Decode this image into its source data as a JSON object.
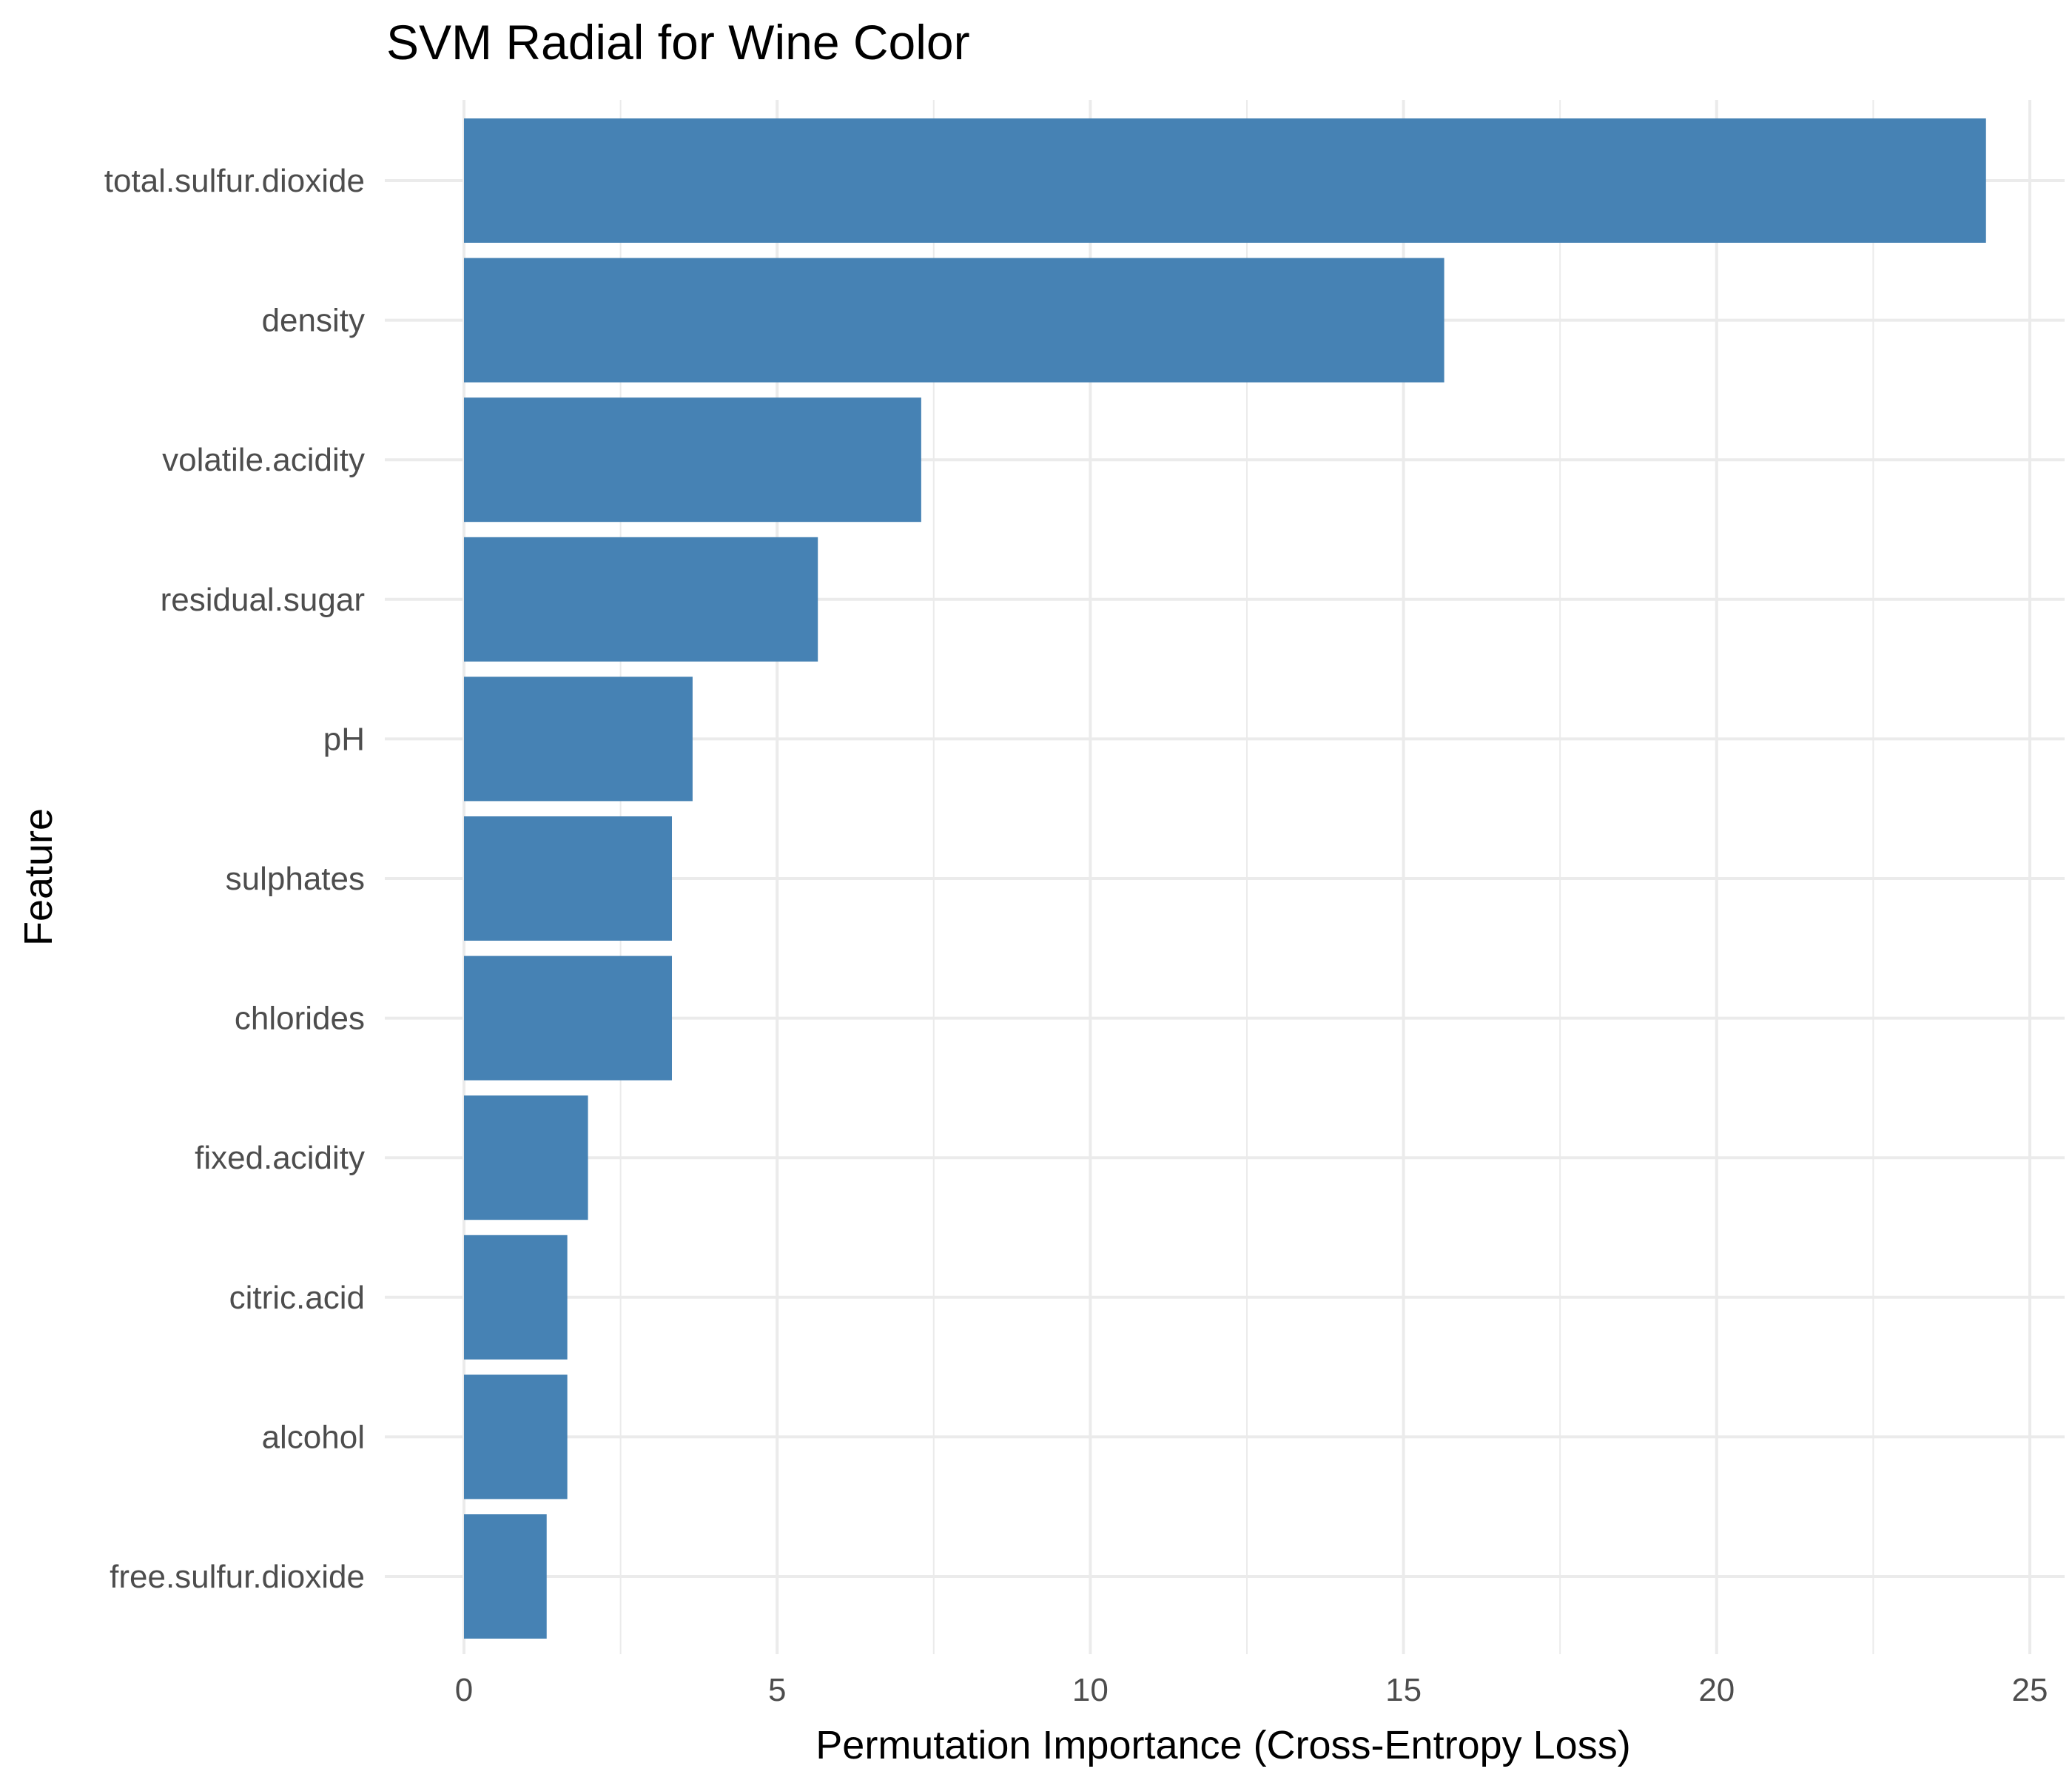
{
  "chart_data": {
    "type": "bar",
    "orientation": "horizontal",
    "title": "SVM Radial for Wine Color",
    "xlabel": "Permutation Importance (Cross-Entropy Loss)",
    "ylabel": "Feature",
    "categories": [
      "total.sulfur.dioxide",
      "density",
      "volatile.acidity",
      "residual.sugar",
      "pH",
      "sulphates",
      "chlorides",
      "fixed.acidity",
      "citric.acid",
      "alcohol",
      "free.sulfur.dioxide"
    ],
    "values": [
      24.3,
      15.65,
      7.3,
      5.65,
      3.65,
      3.32,
      3.32,
      1.98,
      1.65,
      1.65,
      1.32
    ],
    "xlim": [
      0,
      25
    ],
    "xticks": [
      0,
      5,
      10,
      15,
      20,
      25
    ],
    "grid": true,
    "legend": "none",
    "colors": {
      "bar": "#4682b4",
      "grid": "#ebebeb",
      "background": "#ffffff"
    }
  }
}
